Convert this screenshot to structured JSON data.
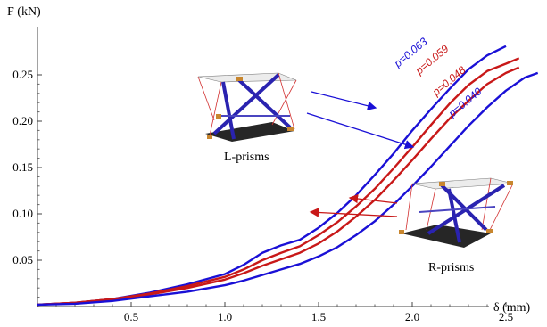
{
  "chart_data": {
    "type": "line",
    "xlabel": "δ (mm)",
    "ylabel": "F (kN)",
    "xlim": [
      0,
      2.75
    ],
    "ylim": [
      0,
      0.3
    ],
    "x_ticks": [
      0.5,
      1.0,
      1.5,
      2.0,
      2.5
    ],
    "x_tick_labels": [
      "0.5",
      "1.0",
      "1.5",
      "2.0",
      "2.5"
    ],
    "y_ticks": [
      0.05,
      0.1,
      0.15,
      0.2,
      0.25
    ],
    "y_tick_labels": [
      "0.05",
      "0.10",
      "0.15",
      "0.20",
      "0.25"
    ],
    "grid": false,
    "colors": {
      "blue": "#1a10d6",
      "red": "#c81818"
    },
    "series": [
      {
        "name": "p=0.063",
        "color": "#1a10d6",
        "points": [
          [
            0,
            0.002
          ],
          [
            0.2,
            0.004
          ],
          [
            0.4,
            0.008
          ],
          [
            0.6,
            0.015
          ],
          [
            0.8,
            0.024
          ],
          [
            1.0,
            0.035
          ],
          [
            1.1,
            0.045
          ],
          [
            1.2,
            0.058
          ],
          [
            1.3,
            0.066
          ],
          [
            1.4,
            0.072
          ],
          [
            1.5,
            0.085
          ],
          [
            1.6,
            0.101
          ],
          [
            1.7,
            0.12
          ],
          [
            1.8,
            0.142
          ],
          [
            1.9,
            0.165
          ],
          [
            2.0,
            0.19
          ],
          [
            2.1,
            0.213
          ],
          [
            2.2,
            0.235
          ],
          [
            2.3,
            0.256
          ],
          [
            2.4,
            0.271
          ],
          [
            2.5,
            0.281
          ]
        ]
      },
      {
        "name": "p=0.059",
        "color": "#c81818",
        "points": [
          [
            0,
            0.002
          ],
          [
            0.2,
            0.004
          ],
          [
            0.4,
            0.008
          ],
          [
            0.6,
            0.014
          ],
          [
            0.8,
            0.022
          ],
          [
            1.0,
            0.032
          ],
          [
            1.1,
            0.04
          ],
          [
            1.2,
            0.05
          ],
          [
            1.3,
            0.058
          ],
          [
            1.4,
            0.065
          ],
          [
            1.5,
            0.077
          ],
          [
            1.6,
            0.091
          ],
          [
            1.7,
            0.108
          ],
          [
            1.8,
            0.127
          ],
          [
            1.9,
            0.149
          ],
          [
            2.0,
            0.172
          ],
          [
            2.1,
            0.196
          ],
          [
            2.2,
            0.219
          ],
          [
            2.3,
            0.239
          ],
          [
            2.4,
            0.254
          ],
          [
            2.5,
            0.262
          ],
          [
            2.57,
            0.268
          ]
        ]
      },
      {
        "name": "p=0.048",
        "color": "#c81818",
        "points": [
          [
            0,
            0.002
          ],
          [
            0.2,
            0.004
          ],
          [
            0.4,
            0.008
          ],
          [
            0.6,
            0.013
          ],
          [
            0.8,
            0.02
          ],
          [
            1.0,
            0.029
          ],
          [
            1.1,
            0.036
          ],
          [
            1.2,
            0.044
          ],
          [
            1.3,
            0.051
          ],
          [
            1.4,
            0.058
          ],
          [
            1.5,
            0.068
          ],
          [
            1.6,
            0.081
          ],
          [
            1.7,
            0.097
          ],
          [
            1.8,
            0.115
          ],
          [
            1.9,
            0.136
          ],
          [
            2.0,
            0.158
          ],
          [
            2.1,
            0.181
          ],
          [
            2.2,
            0.203
          ],
          [
            2.3,
            0.222
          ],
          [
            2.4,
            0.24
          ],
          [
            2.5,
            0.252
          ],
          [
            2.57,
            0.258
          ]
        ]
      },
      {
        "name": "p=0.040",
        "color": "#1a10d6",
        "points": [
          [
            0,
            0.002
          ],
          [
            0.2,
            0.003
          ],
          [
            0.4,
            0.006
          ],
          [
            0.6,
            0.011
          ],
          [
            0.8,
            0.016
          ],
          [
            1.0,
            0.023
          ],
          [
            1.1,
            0.028
          ],
          [
            1.2,
            0.034
          ],
          [
            1.3,
            0.04
          ],
          [
            1.4,
            0.046
          ],
          [
            1.5,
            0.054
          ],
          [
            1.6,
            0.064
          ],
          [
            1.7,
            0.077
          ],
          [
            1.8,
            0.092
          ],
          [
            1.9,
            0.11
          ],
          [
            2.0,
            0.13
          ],
          [
            2.1,
            0.151
          ],
          [
            2.2,
            0.173
          ],
          [
            2.3,
            0.195
          ],
          [
            2.4,
            0.215
          ],
          [
            2.5,
            0.233
          ],
          [
            2.6,
            0.247
          ],
          [
            2.67,
            0.252
          ]
        ]
      }
    ],
    "annotations": {
      "l_prisms": "L-prisms",
      "r_prisms": "R-prisms"
    }
  }
}
